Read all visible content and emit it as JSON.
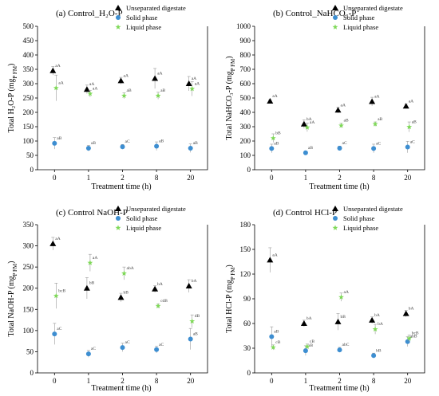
{
  "legend": {
    "unsep": "Unseparated digestate",
    "solid": "Solid phase",
    "liquid": "Liquid phase"
  },
  "colors": {
    "unsep": "#000000",
    "solid": "#3d8ed1",
    "liquid": "#7ed957"
  },
  "chart_data": [
    {
      "type": "scatter",
      "title": "(a) Control_H₂O-P",
      "xlabel": "Treatment time (h)",
      "ylabel": "Total H₂O-P (mg",
      "ylabel_sub": "P",
      "ylabel_sub2": "FM",
      "categories": [
        "0",
        "1",
        "2",
        "8",
        "20"
      ],
      "ylim": [
        0,
        500
      ],
      "yticks": [
        0,
        50,
        100,
        150,
        200,
        250,
        300,
        350,
        400,
        450,
        500
      ],
      "series": [
        {
          "key": "unsep",
          "marker": "triangle",
          "values": [
            345,
            280,
            310,
            318,
            300
          ],
          "errors": [
            15,
            15,
            12,
            35,
            25
          ],
          "labels": [
            "aA",
            "aA",
            "aA",
            "aA",
            "aA"
          ]
        },
        {
          "key": "solid",
          "marker": "circle",
          "values": [
            92,
            75,
            80,
            82,
            75
          ],
          "errors": [
            20,
            10,
            8,
            15,
            15
          ],
          "labels": [
            "aB",
            "aB",
            "aC",
            "aB",
            "aB"
          ]
        },
        {
          "key": "liquid",
          "marker": "star",
          "values": [
            285,
            265,
            258,
            258,
            282
          ],
          "errors": [
            45,
            12,
            10,
            12,
            25
          ],
          "labels": [
            "aA",
            "aA",
            "aB",
            "aB",
            "aA"
          ]
        }
      ]
    },
    {
      "type": "scatter",
      "title": "(b) Control_NaHCO₃-P",
      "xlabel": "Treatment time (h)",
      "ylabel": "Total NaHCO₃-P (mg",
      "ylabel_sub": "P",
      "ylabel_sub2": "FM",
      "categories": [
        "0",
        "1",
        "2",
        "8",
        "20"
      ],
      "ylim": [
        0,
        1000
      ],
      "yticks": [
        0,
        100,
        200,
        300,
        400,
        500,
        600,
        700,
        800,
        900,
        1000
      ],
      "series": [
        {
          "key": "unsep",
          "marker": "triangle",
          "values": [
            478,
            318,
            415,
            475,
            443
          ],
          "errors": [
            10,
            30,
            20,
            30,
            15
          ],
          "labels": [
            "aA",
            "bA",
            "aA",
            "aA",
            "aA"
          ]
        },
        {
          "key": "solid",
          "marker": "circle",
          "values": [
            148,
            118,
            150,
            148,
            158
          ],
          "errors": [
            30,
            10,
            15,
            30,
            40
          ],
          "labels": [
            "aB",
            "aB",
            "aC",
            "aC",
            "aC"
          ]
        },
        {
          "key": "liquid",
          "marker": "star",
          "values": [
            220,
            295,
            308,
            318,
            298
          ],
          "errors": [
            30,
            30,
            15,
            15,
            35
          ],
          "labels": [
            "bB",
            "aA",
            "aB",
            "aB",
            "aB"
          ]
        }
      ]
    },
    {
      "type": "scatter",
      "title": "(c) Control NaOH-P",
      "xlabel": "Treatment time (h)",
      "ylabel": "Total NaOH-P (mg",
      "ylabel_sub": "P",
      "ylabel_sub2": "FM",
      "categories": [
        "0",
        "1",
        "2",
        "8",
        "20"
      ],
      "ylim": [
        0,
        350
      ],
      "yticks": [
        0,
        50,
        100,
        150,
        200,
        250,
        300,
        350
      ],
      "series": [
        {
          "key": "unsep",
          "marker": "triangle",
          "values": [
            305,
            200,
            178,
            198,
            205
          ],
          "errors": [
            15,
            25,
            10,
            8,
            15
          ],
          "labels": [
            "aA",
            "bB",
            "bB",
            "bA",
            "bA"
          ]
        },
        {
          "key": "solid",
          "marker": "circle",
          "values": [
            92,
            45,
            60,
            55,
            80
          ],
          "errors": [
            25,
            8,
            10,
            8,
            25
          ],
          "labels": [
            "aC",
            "aC",
            "aC",
            "aC",
            "aB"
          ]
        },
        {
          "key": "liquid",
          "marker": "star",
          "values": [
            182,
            260,
            235,
            158,
            122
          ],
          "errors": [
            30,
            20,
            15,
            5,
            15
          ],
          "labels": [
            "bcB",
            "aA",
            "abA",
            "cdB",
            "dB"
          ]
        }
      ]
    },
    {
      "type": "scatter",
      "title": "(d) Control HCl-P",
      "xlabel": "Treatment time (h)",
      "ylabel": "Total HCl-P (mg",
      "ylabel_sub": "P",
      "ylabel_sub2": "FM",
      "categories": [
        "0",
        "1",
        "2",
        "8",
        "20"
      ],
      "ylim": [
        0,
        180
      ],
      "yticks": [
        0,
        30,
        60,
        90,
        120,
        150,
        180
      ],
      "series": [
        {
          "key": "unsep",
          "marker": "triangle",
          "values": [
            137,
            60,
            62,
            64,
            72
          ],
          "errors": [
            15,
            4,
            10,
            4,
            4
          ],
          "labels": [
            "aA",
            "bA",
            "bB",
            "bA",
            "bA"
          ]
        },
        {
          "key": "solid",
          "marker": "circle",
          "values": [
            44,
            27,
            28,
            21,
            38
          ],
          "errors": [
            12,
            6,
            3,
            3,
            6
          ],
          "labels": [
            "aB",
            "aB",
            "abC",
            "bB",
            "abB"
          ]
        },
        {
          "key": "liquid",
          "marker": "star",
          "values": [
            31,
            32,
            92,
            53,
            42
          ],
          "errors": [
            3,
            3,
            5,
            6,
            4
          ],
          "labels": [
            "cB",
            "cB",
            "aA",
            "bA",
            "bcB"
          ]
        }
      ]
    }
  ]
}
